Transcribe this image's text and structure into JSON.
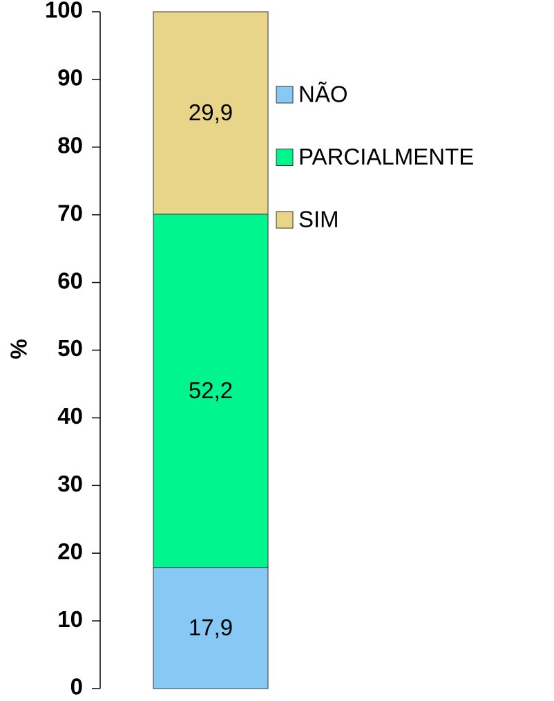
{
  "chart_data": {
    "type": "bar",
    "stacked": true,
    "ylabel": "%",
    "categories": [
      null
    ],
    "series": [
      {
        "name": "NÃO",
        "color": "#87c8f5",
        "values": [
          17.9
        ],
        "value_labels": [
          "17,9"
        ]
      },
      {
        "name": "PARCIALMENTE",
        "color": "#00f58f",
        "values": [
          52.2
        ],
        "value_labels": [
          "52,2"
        ]
      },
      {
        "name": "SIM",
        "color": "#e8d58a",
        "values": [
          29.9
        ],
        "value_labels": [
          "29,9"
        ]
      }
    ],
    "ylim": [
      0,
      100
    ],
    "yticks": [
      0,
      10,
      20,
      30,
      40,
      50,
      60,
      70,
      80,
      90,
      100
    ],
    "grid": false,
    "legend": "right"
  }
}
